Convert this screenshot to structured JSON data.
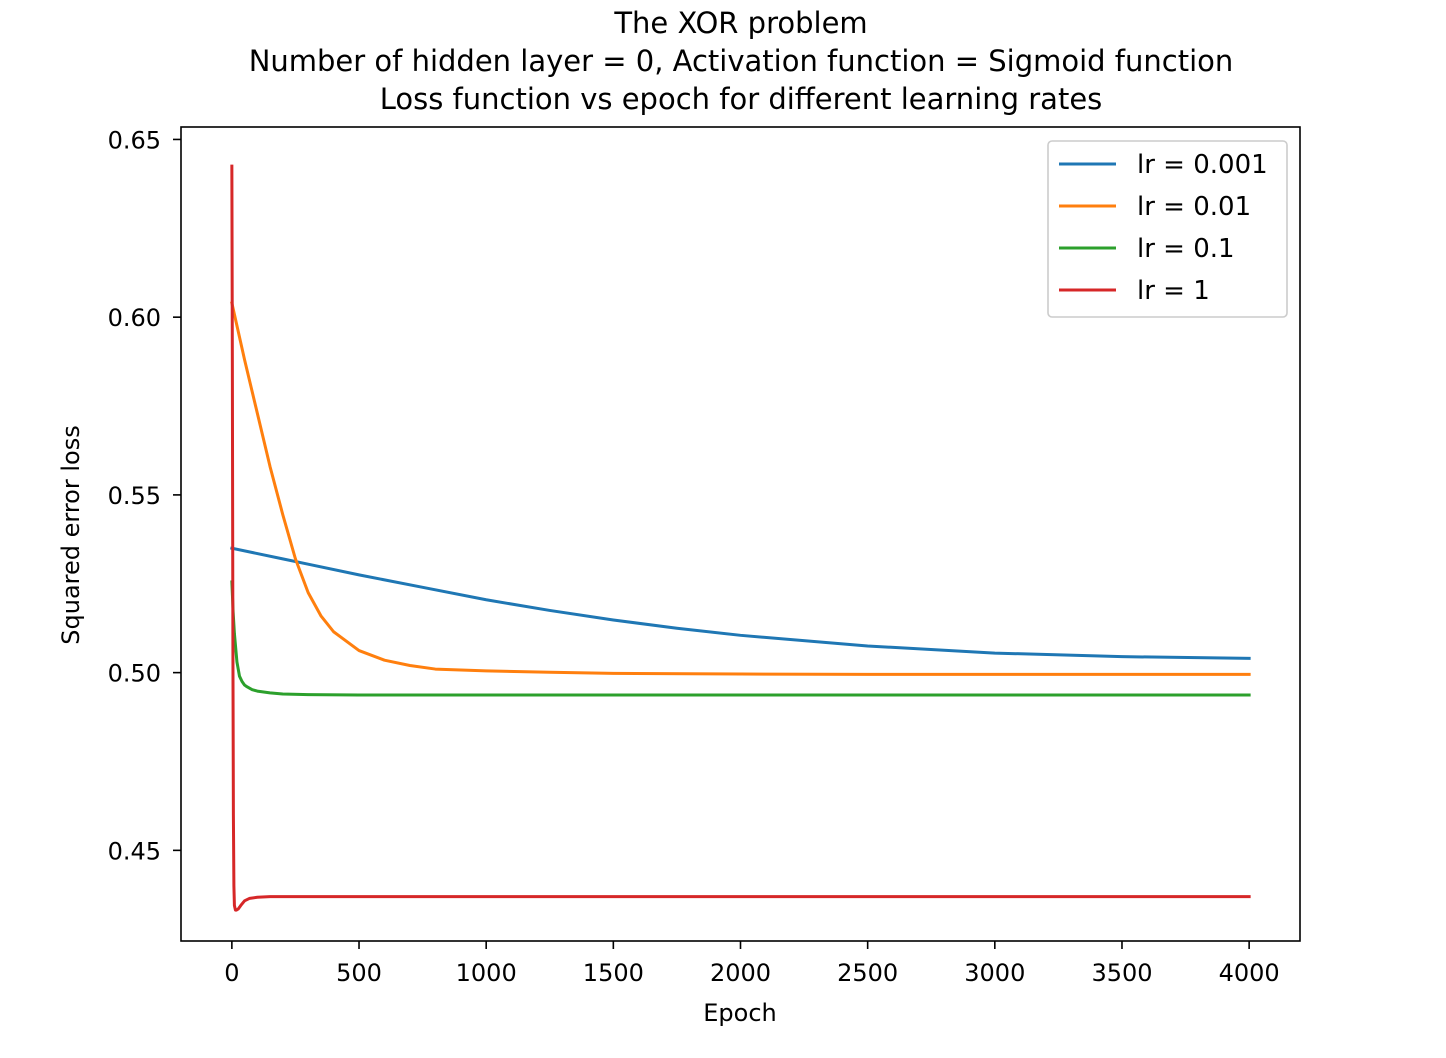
{
  "chart_data": {
    "type": "line",
    "title_lines": [
      "The XOR problem",
      "Number of hidden layer = 0, Activation function = Sigmoid function",
      "Loss function vs epoch for different learning rates"
    ],
    "xlabel": "Epoch",
    "ylabel": "Squared error loss",
    "xlim": [
      -200,
      4200
    ],
    "ylim": [
      0.4245,
      0.6535
    ],
    "xticks": [
      0,
      500,
      1000,
      1500,
      2000,
      2500,
      3000,
      3500,
      4000
    ],
    "xtick_labels": [
      "0",
      "500",
      "1000",
      "1500",
      "2000",
      "2500",
      "3000",
      "3500",
      "4000"
    ],
    "yticks": [
      0.45,
      0.5,
      0.55,
      0.6,
      0.65
    ],
    "ytick_labels": [
      "0.45",
      "0.50",
      "0.55",
      "0.60",
      "0.65"
    ],
    "grid": false,
    "legend_position": "upper right",
    "series": [
      {
        "name": "lr = 0.001",
        "color": "#1f77b4",
        "x": [
          0,
          100,
          200,
          300,
          500,
          750,
          1000,
          1250,
          1500,
          1750,
          2000,
          2500,
          3000,
          3500,
          4000
        ],
        "y": [
          0.535,
          0.5335,
          0.532,
          0.5305,
          0.5275,
          0.524,
          0.5205,
          0.5175,
          0.5148,
          0.5125,
          0.5105,
          0.5075,
          0.5055,
          0.5045,
          0.504
        ]
      },
      {
        "name": "lr = 0.01",
        "color": "#ff7f0e",
        "x": [
          0,
          50,
          100,
          150,
          200,
          250,
          300,
          350,
          400,
          500,
          600,
          700,
          800,
          1000,
          1250,
          1500,
          2000,
          2500,
          3000,
          3500,
          4000
        ],
        "y": [
          0.604,
          0.588,
          0.573,
          0.558,
          0.5445,
          0.532,
          0.5225,
          0.516,
          0.5115,
          0.5062,
          0.5035,
          0.502,
          0.501,
          0.5005,
          0.5001,
          0.4998,
          0.4996,
          0.4995,
          0.4995,
          0.4995,
          0.4995
        ]
      },
      {
        "name": "lr = 0.1",
        "color": "#2ca02c",
        "x": [
          0,
          5,
          10,
          20,
          30,
          40,
          50,
          60,
          80,
          100,
          150,
          200,
          300,
          500,
          1000,
          2000,
          3000,
          4000
        ],
        "y": [
          0.5255,
          0.517,
          0.511,
          0.503,
          0.499,
          0.4975,
          0.4965,
          0.496,
          0.4952,
          0.4948,
          0.4943,
          0.494,
          0.4938,
          0.4937,
          0.4937,
          0.4937,
          0.4937,
          0.4937
        ]
      },
      {
        "name": "lr = 1",
        "color": "#d62728",
        "x": [
          0,
          2,
          4,
          6,
          8,
          10,
          14,
          18,
          25,
          35,
          50,
          70,
          100,
          150,
          200,
          500,
          1000,
          2000,
          3000,
          4000
        ],
        "y": [
          0.6425,
          0.585,
          0.51,
          0.46,
          0.44,
          0.4345,
          0.4332,
          0.4332,
          0.4335,
          0.4345,
          0.4358,
          0.4365,
          0.4368,
          0.437,
          0.437,
          0.437,
          0.437,
          0.437,
          0.437,
          0.437
        ]
      }
    ]
  }
}
